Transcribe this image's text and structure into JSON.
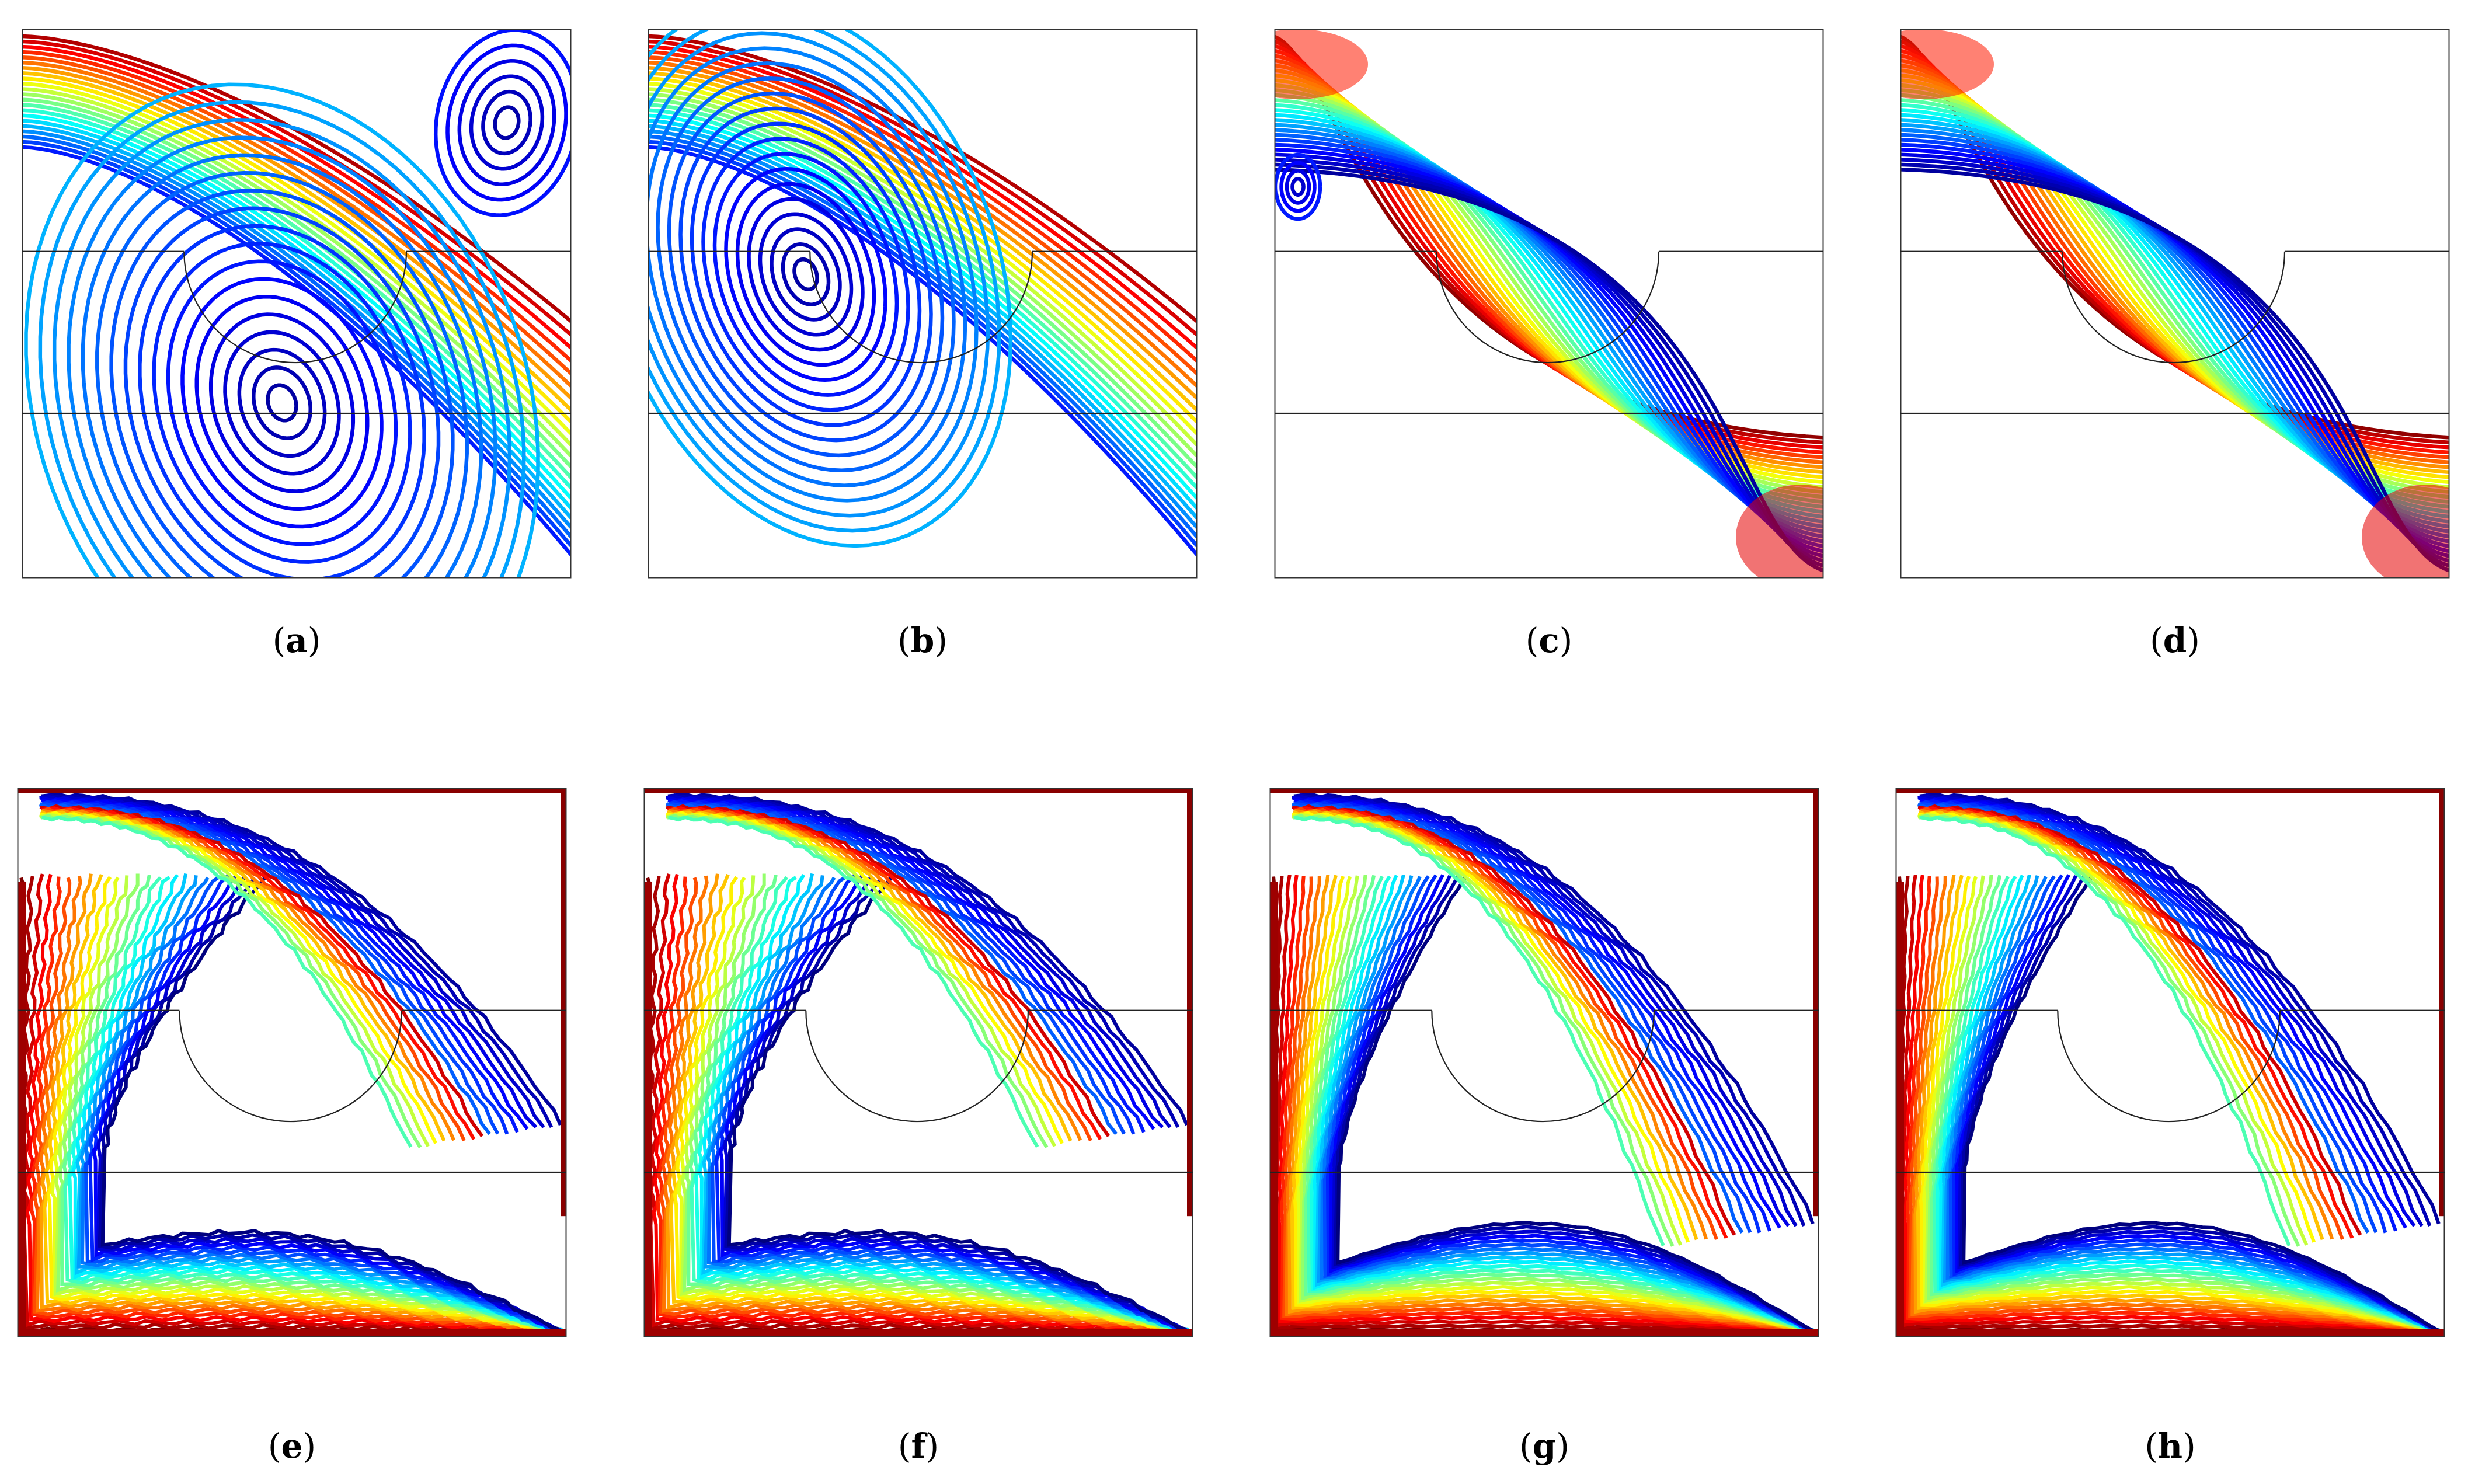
{
  "figure": {
    "panels": [
      {
        "id": "a",
        "label": "a",
        "kind": "streamlines",
        "pattern": "vortex-center",
        "secondary_vortex": "top-right"
      },
      {
        "id": "b",
        "label": "b",
        "kind": "streamlines",
        "pattern": "vortex-left",
        "secondary_vortex": "none"
      },
      {
        "id": "c",
        "label": "c",
        "kind": "streamlines",
        "pattern": "diagonal",
        "secondary_vortex": "small-left"
      },
      {
        "id": "d",
        "label": "d",
        "kind": "streamlines",
        "pattern": "diagonal",
        "secondary_vortex": "none"
      },
      {
        "id": "e",
        "label": "e",
        "kind": "isotherms",
        "pattern": "plume"
      },
      {
        "id": "f",
        "label": "f",
        "kind": "isotherms",
        "pattern": "plume"
      },
      {
        "id": "g",
        "label": "g",
        "kind": "isotherms",
        "pattern": "s-curve"
      },
      {
        "id": "h",
        "label": "h",
        "kind": "isotherms",
        "pattern": "s-curve"
      }
    ],
    "colormap": [
      "#00007f",
      "#0000ff",
      "#007fff",
      "#00ffff",
      "#7fff7f",
      "#ffff00",
      "#ff7f00",
      "#ff0000",
      "#7f0000"
    ]
  }
}
